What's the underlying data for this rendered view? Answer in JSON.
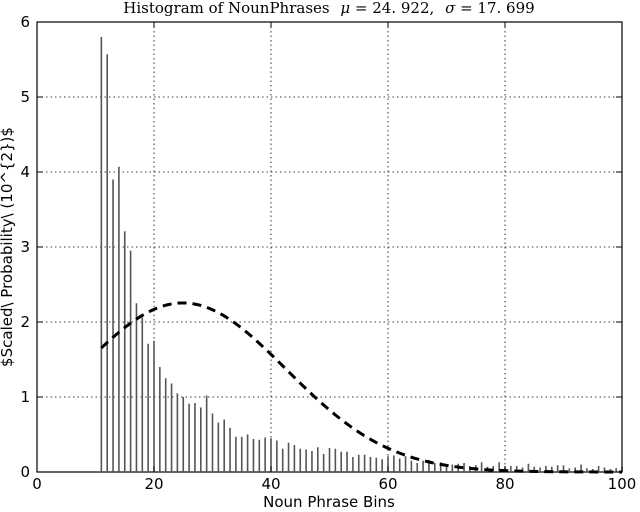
{
  "chart_data": {
    "type": "bar",
    "title": {
      "main": "Histogram of NounPhrases",
      "mu_symbol": "μ",
      "mu_value": "= 24. 922,",
      "sigma_symbol": "σ",
      "sigma_value": "= 17. 699"
    },
    "xlabel": "Noun Phrase Bins",
    "ylabel": "$Scaled\\ Probability\\ (10^{2})$",
    "xlim": [
      0,
      100
    ],
    "ylim": [
      0,
      6
    ],
    "x_ticks": [
      "0",
      "20",
      "40",
      "60",
      "80",
      "100"
    ],
    "y_ticks": [
      "0",
      "1",
      "2",
      "3",
      "4",
      "5",
      "6"
    ],
    "grid": true,
    "bar_color": "#555555",
    "curve_color": "#000000",
    "bars": {
      "x": [
        11,
        12,
        13,
        14,
        15,
        16,
        17,
        18,
        19,
        20,
        21,
        22,
        23,
        24,
        25,
        26,
        27,
        28,
        29,
        30,
        31,
        32,
        33,
        34,
        35,
        36,
        37,
        38,
        39,
        40,
        41,
        42,
        43,
        44,
        45,
        46,
        47,
        48,
        49,
        50,
        51,
        52,
        53,
        54,
        55,
        56,
        57,
        58,
        59,
        60,
        61,
        62,
        63,
        64,
        65,
        66,
        67,
        68,
        69,
        70,
        71,
        72,
        73,
        74,
        75,
        76,
        77,
        78,
        79,
        80,
        81,
        82,
        83,
        84,
        85,
        86,
        87,
        88,
        89,
        90,
        91,
        92,
        93,
        94,
        95,
        96,
        97,
        98,
        99,
        100
      ],
      "values": [
        5.8,
        5.57,
        3.9,
        4.07,
        3.21,
        2.95,
        2.25,
        2.06,
        1.71,
        1.75,
        1.4,
        1.25,
        1.18,
        1.05,
        1.0,
        0.91,
        0.92,
        0.86,
        1.02,
        0.78,
        0.66,
        0.7,
        0.59,
        0.47,
        0.47,
        0.5,
        0.44,
        0.43,
        0.46,
        0.45,
        0.42,
        0.31,
        0.39,
        0.36,
        0.31,
        0.3,
        0.28,
        0.33,
        0.24,
        0.32,
        0.31,
        0.27,
        0.27,
        0.2,
        0.23,
        0.23,
        0.2,
        0.19,
        0.17,
        0.21,
        0.22,
        0.18,
        0.21,
        0.15,
        0.12,
        0.15,
        0.16,
        0.12,
        0.13,
        0.1,
        0.1,
        0.11,
        0.12,
        0.08,
        0.09,
        0.13,
        0.07,
        0.08,
        0.13,
        0.07,
        0.08,
        0.08,
        0.06,
        0.11,
        0.07,
        0.06,
        0.08,
        0.07,
        0.09,
        0.09,
        0.05,
        0.06,
        0.1,
        0.05,
        0.04,
        0.08,
        0.06,
        0.04,
        0.05,
        0.07
      ]
    },
    "normal_curve": {
      "mean": 24.922,
      "std": 17.699,
      "x_start": 11,
      "x_end": 100,
      "style": "dashed"
    }
  }
}
